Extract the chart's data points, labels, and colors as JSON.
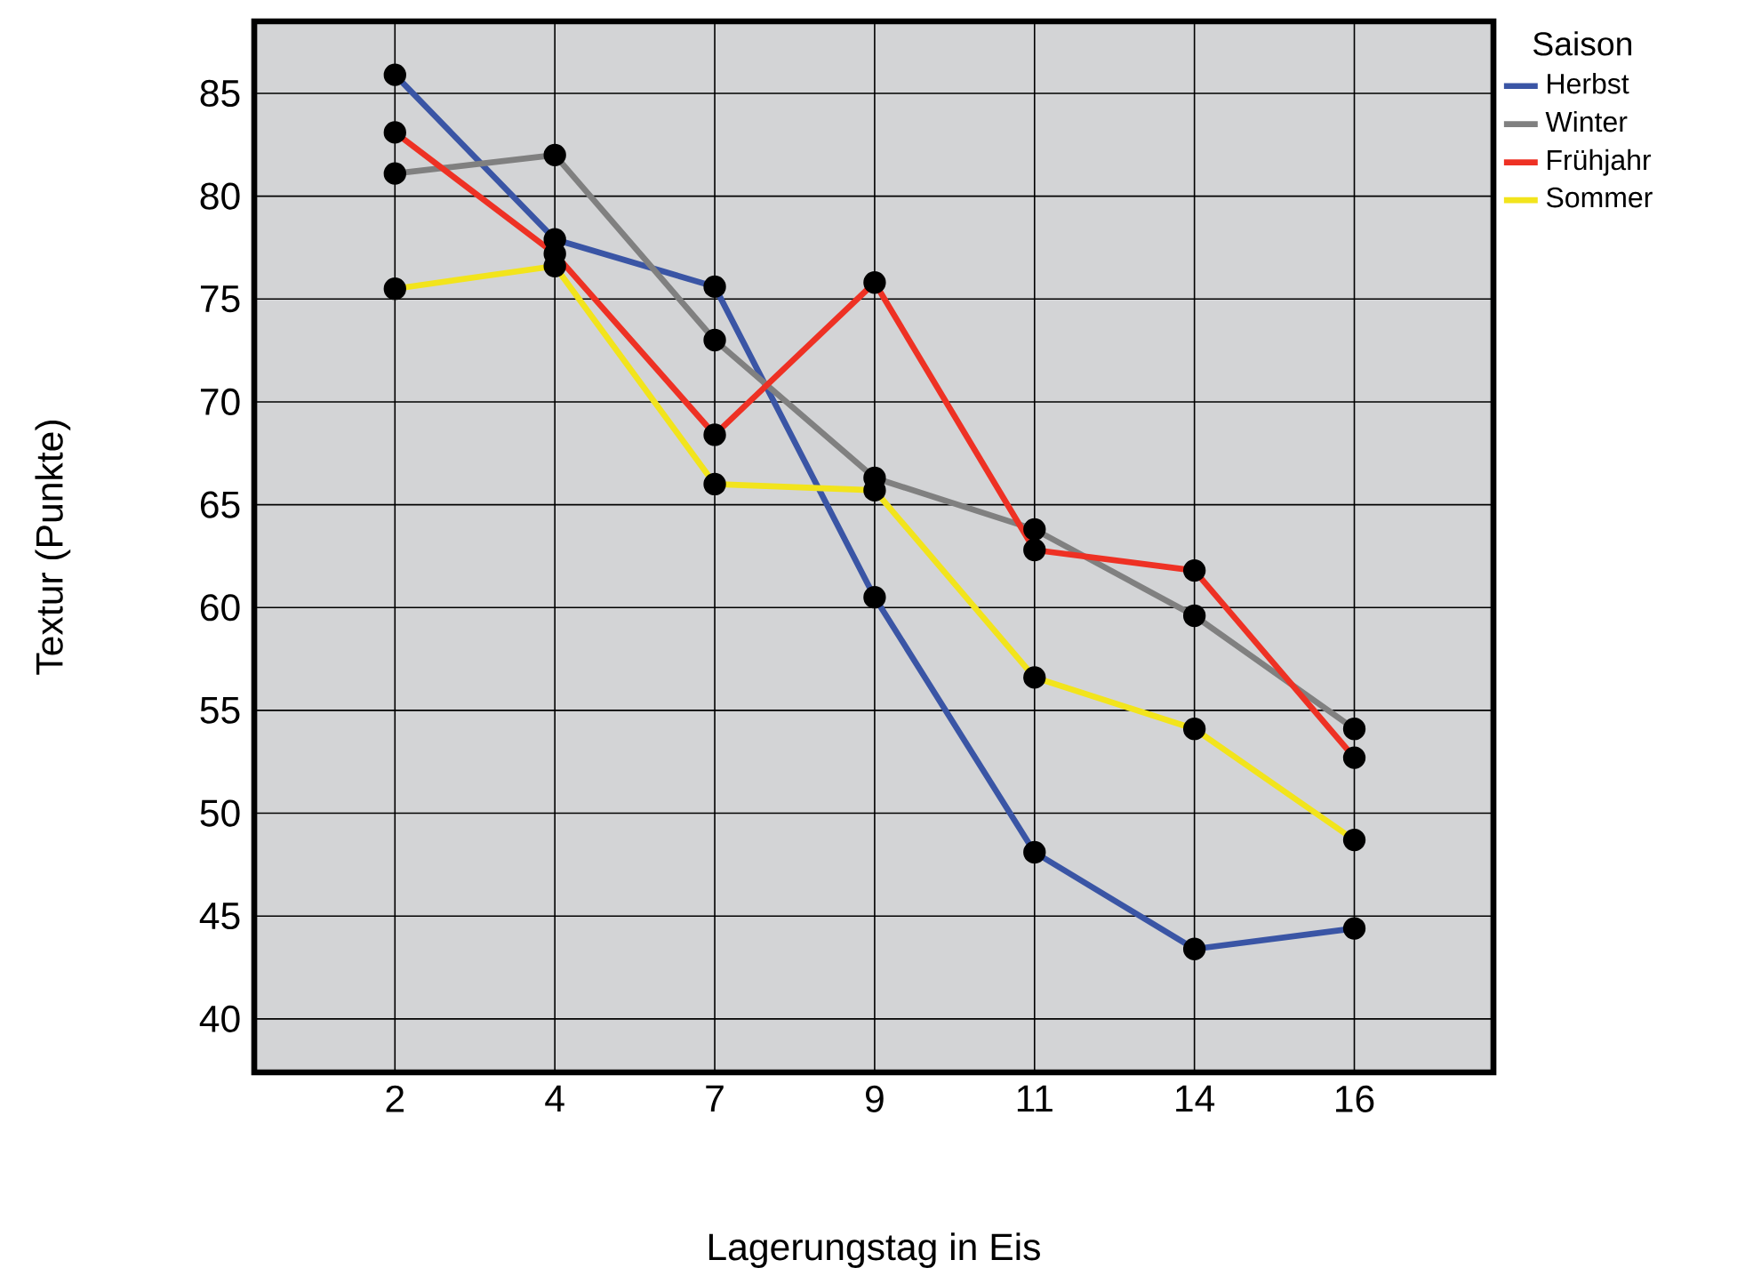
{
  "chart_data": {
    "type": "line",
    "xlabel": "Lagerungstag in Eis",
    "ylabel": "Textur (Punkte)",
    "legend_title": "Saison",
    "categories": [
      "2",
      "4",
      "7",
      "9",
      "11",
      "14",
      "16"
    ],
    "series": [
      {
        "name": "Herbst",
        "color": "#3a55a5",
        "values": [
          85.9,
          77.9,
          75.6,
          60.5,
          48.1,
          43.4,
          44.4
        ]
      },
      {
        "name": "Winter",
        "color": "#808080",
        "values": [
          81.1,
          82.0,
          73.0,
          66.3,
          63.8,
          59.6,
          54.1
        ]
      },
      {
        "name": "Frühjahr",
        "color": "#ee3124",
        "values": [
          83.1,
          77.2,
          68.4,
          75.8,
          62.8,
          61.8,
          52.7
        ]
      },
      {
        "name": "Sommer",
        "color": "#f2e41c",
        "values": [
          75.5,
          76.6,
          66.0,
          65.7,
          56.6,
          54.1,
          48.7
        ]
      }
    ],
    "ylim": [
      37.4,
      88.5
    ],
    "yticks": [
      40,
      45,
      50,
      55,
      60,
      65,
      70,
      75,
      80,
      85
    ],
    "grid": true,
    "legend": "top right",
    "marker": "circle",
    "line_style": "solid"
  }
}
